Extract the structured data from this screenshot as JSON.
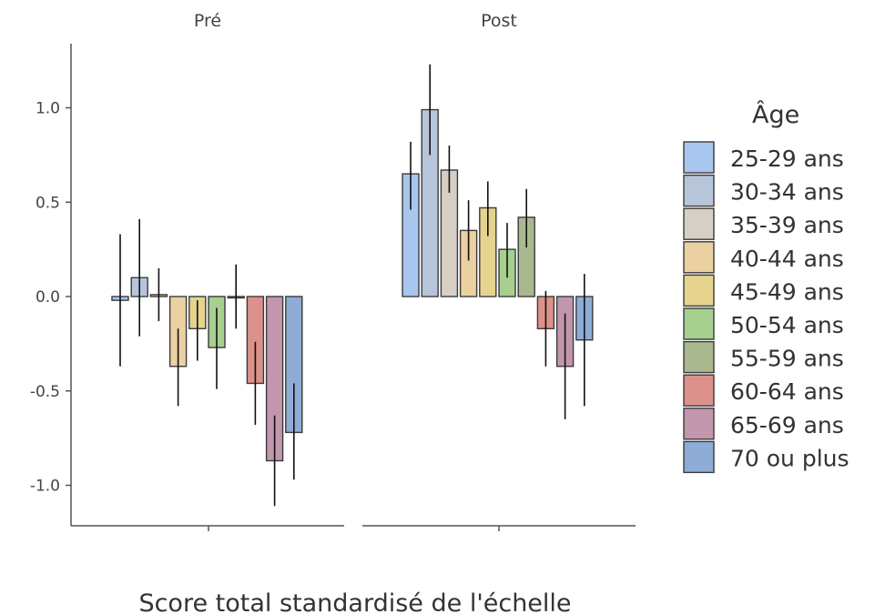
{
  "chart_data": {
    "type": "bar",
    "xlabel": "Score total standardisé de l'échelle",
    "ylabel": "",
    "ylim": [
      -1.2,
      1.32
    ],
    "yticks": [
      "-1.0",
      "-0.5",
      "0.0",
      "0.5",
      "1.0"
    ],
    "yticks_values": [
      -1.0,
      -0.5,
      0.0,
      0.5,
      1.0
    ],
    "grid": false,
    "legend_title": "Âge",
    "legend_position": "right",
    "groups": [
      {
        "name": "Pré",
        "values": [
          -0.02,
          0.1,
          0.01,
          -0.37,
          -0.17,
          -0.27,
          0.0,
          -0.46,
          -0.87,
          -0.72
        ],
        "err_low": [
          -0.37,
          -0.21,
          -0.13,
          -0.58,
          -0.34,
          -0.49,
          -0.17,
          -0.68,
          -1.11,
          -0.97
        ],
        "err_high": [
          0.33,
          0.41,
          0.15,
          -0.17,
          -0.02,
          -0.06,
          0.17,
          -0.24,
          -0.63,
          -0.46
        ]
      },
      {
        "name": "Post",
        "values": [
          0.65,
          0.99,
          0.67,
          0.35,
          0.47,
          0.25,
          0.42,
          -0.17,
          -0.37,
          -0.23
        ],
        "err_low": [
          0.46,
          0.75,
          0.55,
          0.19,
          0.32,
          0.1,
          0.26,
          -0.37,
          -0.65,
          -0.58
        ],
        "err_high": [
          0.82,
          1.23,
          0.8,
          0.51,
          0.61,
          0.39,
          0.57,
          0.03,
          -0.09,
          0.12
        ]
      }
    ],
    "series": [
      {
        "name": "25-29 ans",
        "color": "#a9c6ee"
      },
      {
        "name": "30-34 ans",
        "color": "#b7c5da"
      },
      {
        "name": "35-39 ans",
        "color": "#d5cfc6"
      },
      {
        "name": "40-44 ans",
        "color": "#ebd0a1"
      },
      {
        "name": "45-49 ans",
        "color": "#e5d38e"
      },
      {
        "name": "50-54 ans",
        "color": "#a7d08f"
      },
      {
        "name": "55-59 ans",
        "color": "#a9b88f"
      },
      {
        "name": "60-64 ans",
        "color": "#dd918b"
      },
      {
        "name": "65-69 ans",
        "color": "#c296ac"
      },
      {
        "name": "70 ou plus",
        "color": "#8eacd6"
      }
    ]
  }
}
